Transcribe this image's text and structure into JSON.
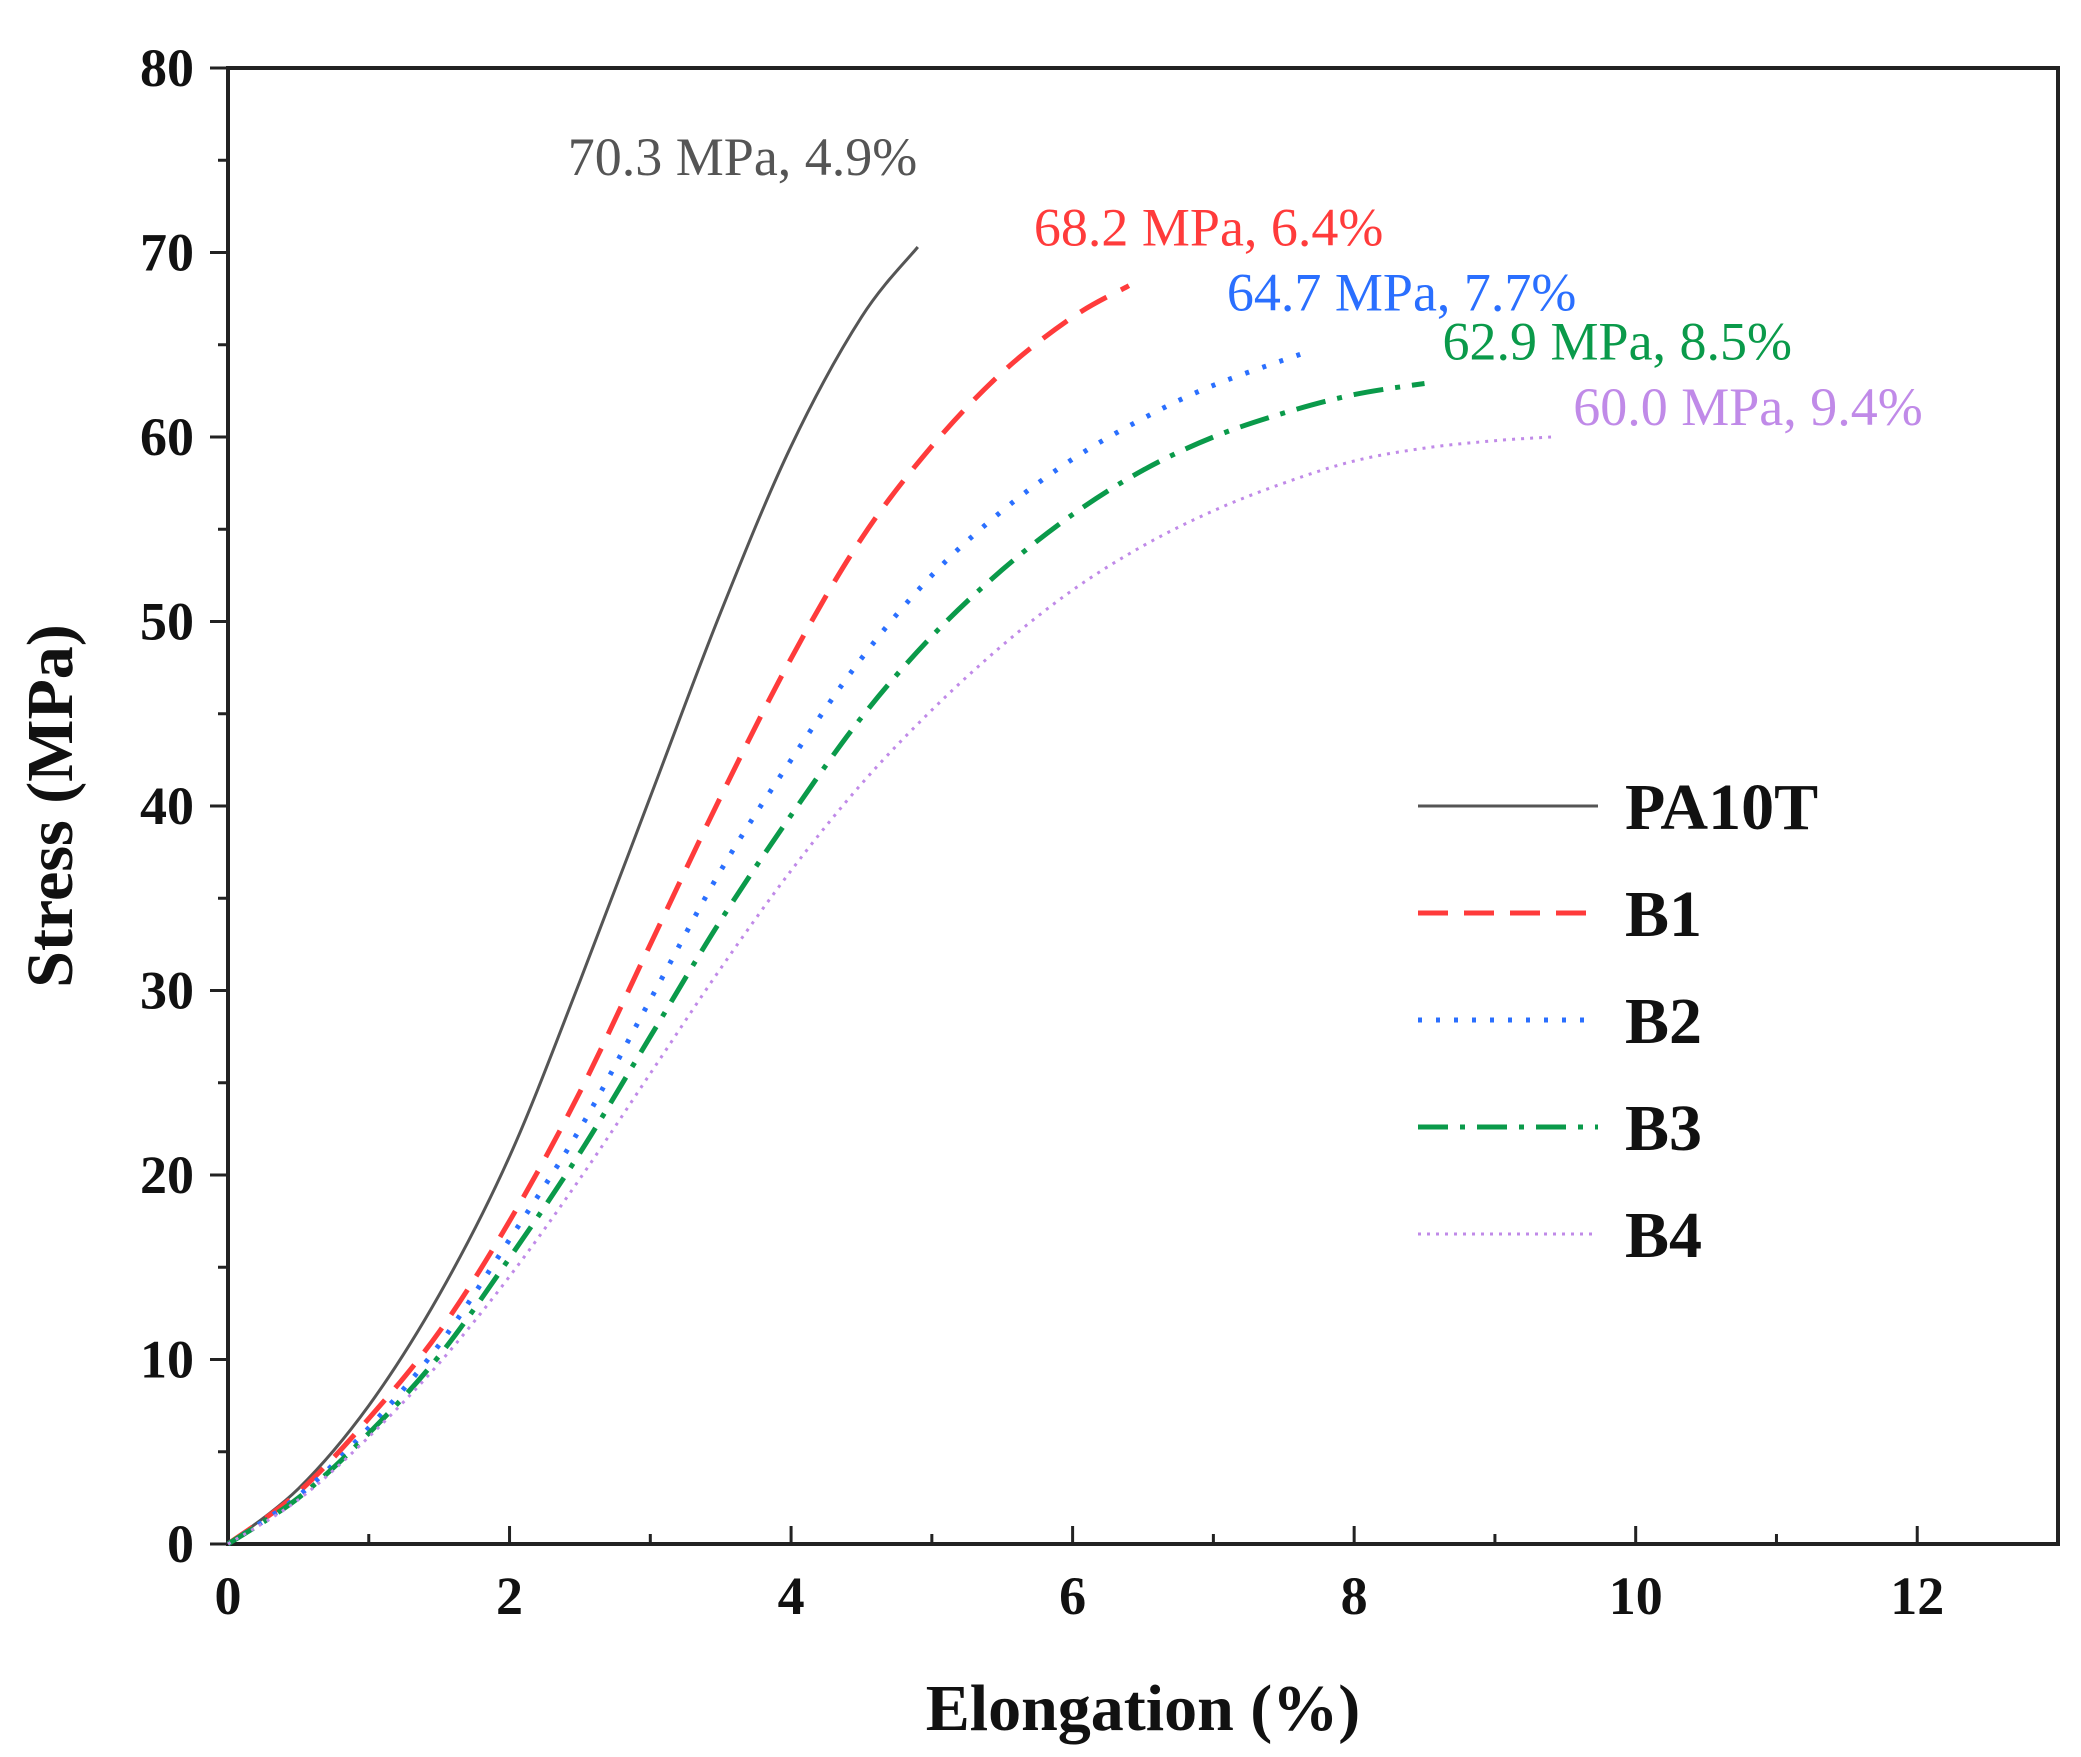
{
  "chart_data": {
    "type": "line",
    "xlabel": "Elongation (%)",
    "ylabel": "Stress (MPa)",
    "xlim": [
      0,
      13
    ],
    "ylim": [
      0,
      80
    ],
    "xticks": [
      0,
      2,
      4,
      6,
      8,
      10,
      12
    ],
    "yticks": [
      0,
      10,
      20,
      30,
      40,
      50,
      60,
      70,
      80
    ],
    "grid": false,
    "legend_position": "center-right",
    "series": [
      {
        "name": "PA10T",
        "color": "#555555",
        "style": "solid",
        "x": [
          0,
          0.5,
          1.0,
          1.5,
          2.0,
          2.5,
          3.0,
          3.5,
          4.0,
          4.5,
          4.9
        ],
        "y": [
          0,
          3.0,
          7.5,
          13.5,
          21.0,
          30.5,
          40.5,
          50.5,
          59.5,
          66.5,
          70.3
        ],
        "annotation": "70.3 MPa, 4.9%"
      },
      {
        "name": "B1",
        "color": "#ff3b3b",
        "style": "dashed",
        "x": [
          0,
          0.5,
          1.0,
          1.5,
          2.0,
          2.5,
          3.0,
          3.5,
          4.0,
          4.5,
          5.0,
          5.5,
          6.0,
          6.4
        ],
        "y": [
          0,
          2.8,
          6.8,
          11.5,
          17.5,
          24.5,
          32.5,
          40.5,
          48.0,
          54.5,
          59.5,
          63.5,
          66.5,
          68.2
        ],
        "annotation": "68.2 MPa, 6.4%"
      },
      {
        "name": "B2",
        "color": "#2a6fff",
        "style": "dotted",
        "x": [
          0,
          0.5,
          1.0,
          1.5,
          2.0,
          2.5,
          3.0,
          3.5,
          4.0,
          4.5,
          5.0,
          5.5,
          6.0,
          6.5,
          7.0,
          7.7
        ],
        "y": [
          0,
          2.6,
          6.3,
          10.8,
          16.5,
          22.5,
          29.5,
          36.5,
          42.5,
          48.0,
          52.5,
          56.0,
          58.8,
          61.0,
          62.8,
          64.7
        ],
        "annotation": "64.7 MPa, 7.7%"
      },
      {
        "name": "B3",
        "color": "#0a9a4a",
        "style": "dashdot",
        "x": [
          0,
          0.5,
          1.0,
          1.5,
          2.0,
          2.5,
          3.0,
          3.5,
          4.0,
          4.5,
          5.0,
          5.5,
          6.0,
          6.5,
          7.0,
          7.5,
          8.0,
          8.5
        ],
        "y": [
          0,
          2.5,
          6.0,
          10.2,
          15.5,
          21.2,
          27.5,
          33.8,
          39.5,
          44.8,
          49.2,
          52.8,
          55.8,
          58.2,
          60.0,
          61.3,
          62.3,
          62.9
        ],
        "annotation": "62.9 MPa, 8.5%"
      },
      {
        "name": "B4",
        "color": "#c08ae8",
        "style": "fine-dotted",
        "x": [
          0,
          0.5,
          1.0,
          1.5,
          2.0,
          2.5,
          3.0,
          3.5,
          4.0,
          4.5,
          5.0,
          5.5,
          6.0,
          6.5,
          7.0,
          7.5,
          8.0,
          8.5,
          9.0,
          9.4
        ],
        "y": [
          0,
          2.4,
          5.8,
          9.8,
          14.5,
          19.8,
          25.5,
          31.2,
          36.5,
          41.2,
          45.2,
          48.7,
          51.7,
          54.1,
          56.0,
          57.5,
          58.7,
          59.4,
          59.8,
          60.0
        ],
        "annotation": "60.0 MPa, 9.4%"
      }
    ]
  }
}
